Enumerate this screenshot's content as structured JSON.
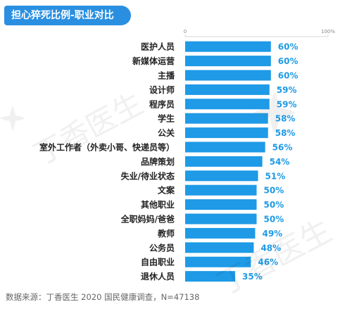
{
  "title": "担心猝死比例-职业对比",
  "source": "数据来源：丁香医生 2020 国民健康调查，N=47138",
  "watermark_text": "丁香医生",
  "colors": {
    "bar": "#1e9ae6",
    "value_text": "#1e9ae6",
    "title_bg": "#2a8fe0"
  },
  "chart_data": {
    "type": "bar",
    "orientation": "horizontal",
    "xlim": [
      0,
      100
    ],
    "xticks": [
      "0",
      "100%"
    ],
    "categories": [
      "医护人员",
      "新媒体运营",
      "主播",
      "设计师",
      "程序员",
      "学生",
      "公关",
      "室外工作者（外卖小哥、快递员等）",
      "品牌策划",
      "失业/待业状态",
      "文案",
      "其他职业",
      "全职妈妈/爸爸",
      "教师",
      "公务员",
      "自由职业",
      "退休人员"
    ],
    "values": [
      60,
      60,
      60,
      59,
      59,
      58,
      58,
      56,
      54,
      51,
      50,
      50,
      50,
      49,
      48,
      46,
      35
    ],
    "labels": [
      "60%",
      "60%",
      "60%",
      "59%",
      "59%",
      "58%",
      "58%",
      "56%",
      "54%",
      "51%",
      "50%",
      "50%",
      "50%",
      "49%",
      "48%",
      "46%",
      "35%"
    ]
  }
}
